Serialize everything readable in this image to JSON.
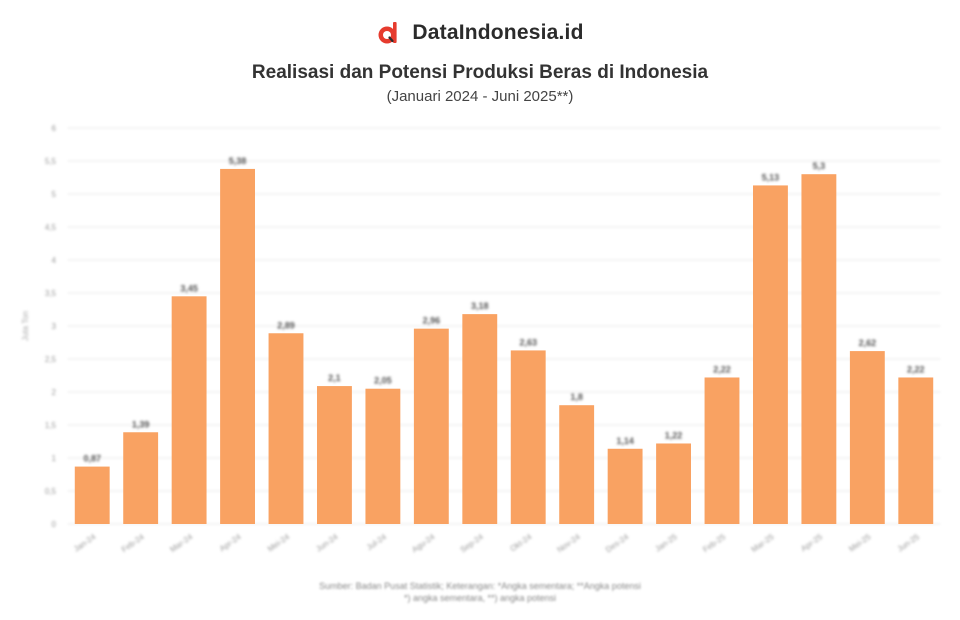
{
  "brand": {
    "name": "DataIndonesia.id",
    "logo_icon": "brand-d-logo-icon",
    "logo_color": "#e63b2e"
  },
  "header": {
    "title": "Realisasi dan Potensi Produksi Beras di Indonesia",
    "subtitle": "(Januari 2024 - Juni 2025**)"
  },
  "footer": {
    "source": "Sumber: Badan Pusat Statistik; Keterangan: *Angka sementara; **Angka potensi",
    "note": "*) angka sementara, **) angka potensi"
  },
  "chart_data": {
    "type": "bar",
    "categories": [
      "Jan-24",
      "Feb-24",
      "Mar-24",
      "Apr-24",
      "Mei-24",
      "Jun-24",
      "Jul-24",
      "Agu-24",
      "Sep-24",
      "Okt-24",
      "Nov-24",
      "Des-24",
      "Jan-25",
      "Feb-25",
      "Mar-25",
      "Apr-25",
      "Mei-25",
      "Jun-25"
    ],
    "values": [
      0.87,
      1.39,
      3.45,
      5.38,
      2.89,
      2.09,
      2.05,
      2.96,
      3.18,
      2.63,
      1.8,
      1.14,
      1.22,
      2.22,
      5.13,
      5.3,
      2.62,
      2.22
    ],
    "data_labels": [
      "0,87",
      "1,39",
      "3,45",
      "5,38",
      "2,89",
      "2,1",
      "2,05",
      "2,96",
      "3,18",
      "2,63",
      "1,8",
      "1,14",
      "1,22",
      "2,22",
      "5,13",
      "5,3",
      "2,62",
      "2,22"
    ],
    "ylim": [
      0,
      6
    ],
    "yticks": [
      0,
      0.5,
      1,
      1.5,
      2,
      2.5,
      3,
      3.5,
      4,
      4.5,
      5,
      5.5,
      6
    ],
    "ytick_labels": [
      "0",
      "0,5",
      "1",
      "1,5",
      "2",
      "2,5",
      "3",
      "3,5",
      "4",
      "4,5",
      "5",
      "5,5",
      "6"
    ],
    "ylabel": "Juta Ton",
    "xlabel": "",
    "grid": true,
    "bar_color": "#f9a262",
    "label_color": "#555555"
  }
}
